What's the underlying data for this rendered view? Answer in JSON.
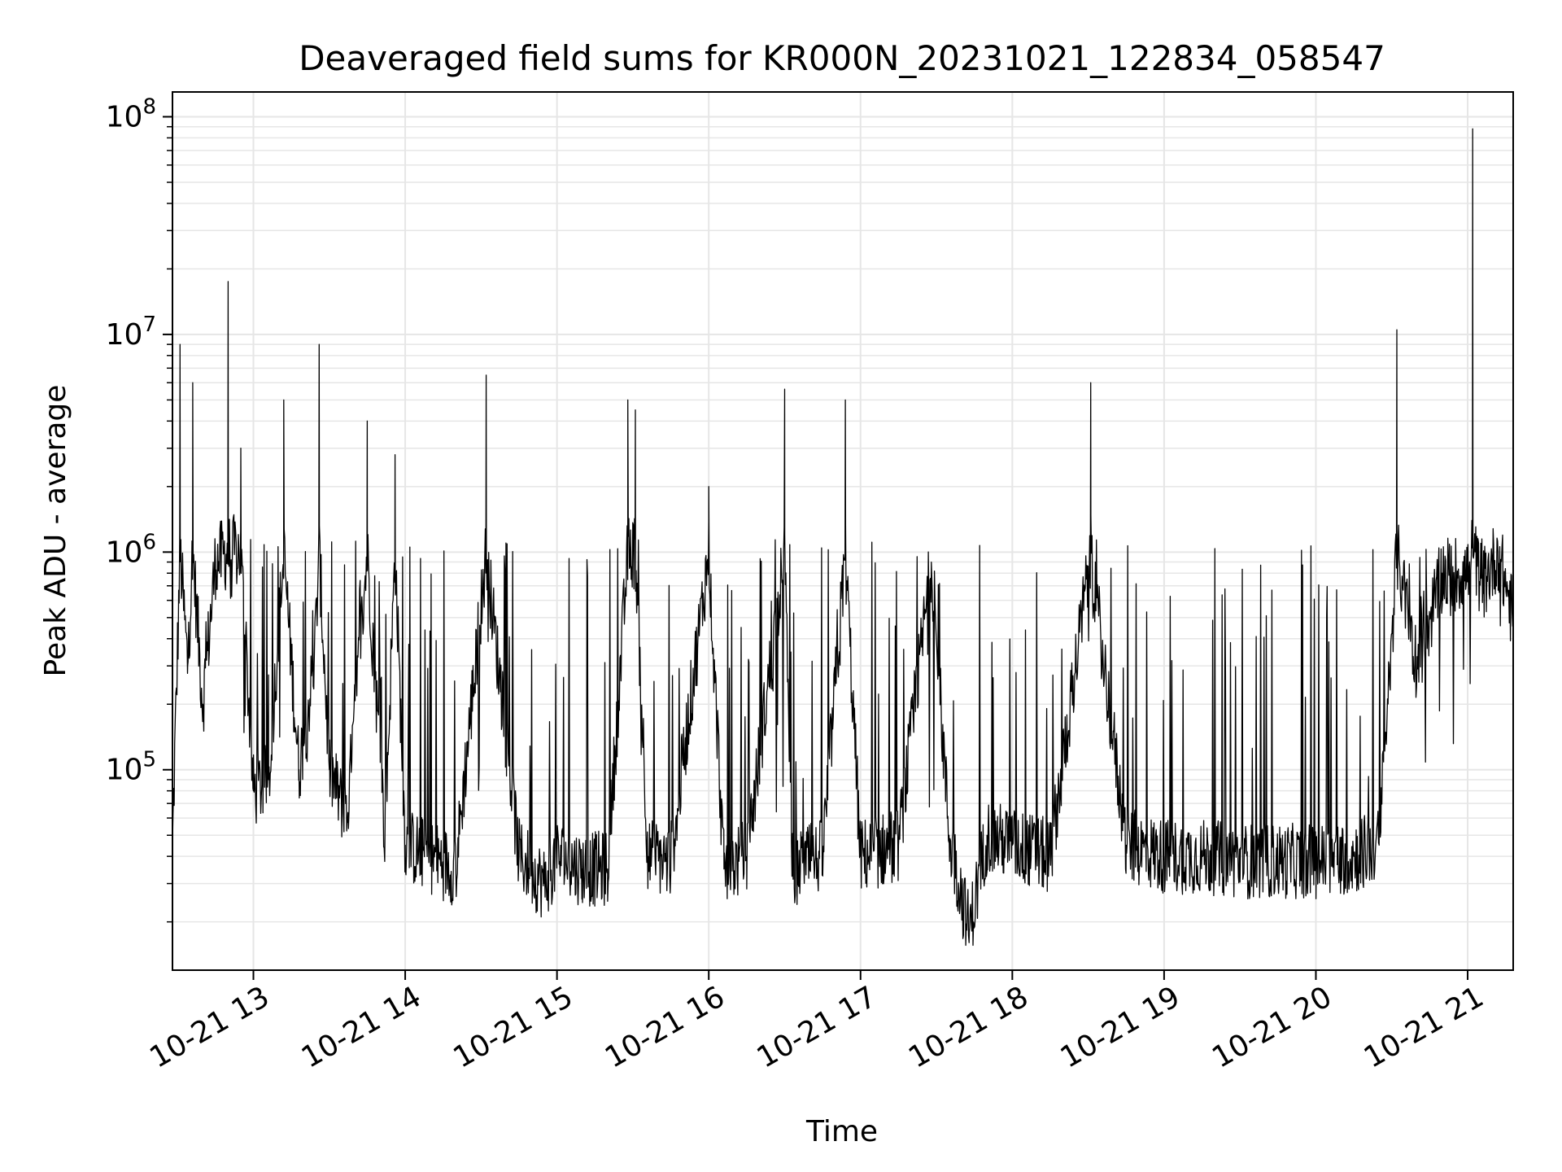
{
  "chart_data": {
    "type": "line",
    "title": "Deaveraged field sums for KR000N_20231021_122834_058547",
    "xlabel": "Time",
    "ylabel": "Peak ADU - average",
    "yscale": "log",
    "ylim": [
      12000,
      130000000
    ],
    "xlim": [
      "2023-10-21 12:28",
      "2023-10-21 21:18"
    ],
    "x_ticks": [
      {
        "at": "2023-10-21 13:00",
        "label": "10-21 13"
      },
      {
        "at": "2023-10-21 14:00",
        "label": "10-21 14"
      },
      {
        "at": "2023-10-21 15:00",
        "label": "10-21 15"
      },
      {
        "at": "2023-10-21 16:00",
        "label": "10-21 16"
      },
      {
        "at": "2023-10-21 17:00",
        "label": "10-21 17"
      },
      {
        "at": "2023-10-21 18:00",
        "label": "10-21 18"
      },
      {
        "at": "2023-10-21 19:00",
        "label": "10-21 19"
      },
      {
        "at": "2023-10-21 20:00",
        "label": "10-21 20"
      },
      {
        "at": "2023-10-21 21:00",
        "label": "10-21 21"
      }
    ],
    "y_ticks": [
      {
        "value": 100000,
        "base": "10",
        "exp": "5"
      },
      {
        "value": 1000000,
        "base": "10",
        "exp": "6"
      },
      {
        "value": 10000000,
        "base": "10",
        "exp": "7"
      },
      {
        "value": 100000000,
        "base": "10",
        "exp": "8"
      }
    ],
    "grid": true,
    "color": "#000000",
    "series": [
      {
        "x": [
          "2023-10-21 12:28",
          "2023-10-21 12:31",
          "2023-10-21 12:34",
          "2023-10-21 12:36",
          "2023-10-21 12:40",
          "2023-10-21 12:45",
          "2023-10-21 12:50",
          "2023-10-21 12:55",
          "2023-10-21 13:00",
          "2023-10-21 13:06",
          "2023-10-21 13:12",
          "2023-10-21 13:18",
          "2023-10-21 13:24",
          "2023-10-21 13:26",
          "2023-10-21 13:30",
          "2023-10-21 13:37",
          "2023-10-21 13:45",
          "2023-10-21 13:52",
          "2023-10-21 13:56",
          "2023-10-21 14:00",
          "2023-10-21 14:10",
          "2023-10-21 14:20",
          "2023-10-21 14:32",
          "2023-10-21 14:45",
          "2023-10-21 14:55",
          "2023-10-21 15:00",
          "2023-10-21 15:10",
          "2023-10-21 15:20",
          "2023-10-21 15:28",
          "2023-10-21 15:31",
          "2023-10-21 15:36",
          "2023-10-21 15:45",
          "2023-10-21 16:00",
          "2023-10-21 16:06",
          "2023-10-21 16:15",
          "2023-10-21 16:30",
          "2023-10-21 16:33",
          "2023-10-21 16:45",
          "2023-10-21 16:54",
          "2023-10-21 17:00",
          "2023-10-21 17:15",
          "2023-10-21 17:28",
          "2023-10-21 17:35",
          "2023-10-21 17:43",
          "2023-10-21 17:50",
          "2023-10-21 18:00",
          "2023-10-21 18:15",
          "2023-10-21 18:31",
          "2023-10-21 18:45",
          "2023-10-21 19:00",
          "2023-10-21 19:15",
          "2023-10-21 19:30",
          "2023-10-21 19:45",
          "2023-10-21 20:00",
          "2023-10-21 20:15",
          "2023-10-21 20:25",
          "2023-10-21 20:32",
          "2023-10-21 20:40",
          "2023-10-21 20:50",
          "2023-10-21 21:00",
          "2023-10-21 21:02",
          "2023-10-21 21:06",
          "2023-10-21 21:12",
          "2023-10-21 21:18"
        ],
        "y": [
          45000,
          9000000,
          300000,
          6000000,
          200000,
          900000,
          17500000,
          3000000,
          80000,
          90000,
          5000000,
          100000,
          300000,
          9000000,
          100000,
          60000,
          4000000,
          50000,
          2800000,
          45000,
          40000,
          35000,
          6500000,
          40000,
          30000,
          40000,
          35000,
          35000,
          5000000,
          4500000,
          40000,
          38000,
          2000000,
          35000,
          40000,
          5600000,
          35000,
          40000,
          5000000,
          40000,
          45000,
          900000,
          50000,
          18000,
          50000,
          45000,
          40000,
          6000000,
          45000,
          40000,
          40000,
          38000,
          38000,
          38000,
          40000,
          45000,
          10500000,
          300000,
          800000,
          800000,
          88000000,
          700000,
          1000000,
          500000
        ],
        "envelope": {
          "typical_low": 35000,
          "typical_high": 60000,
          "spike_level": 1000000
        }
      }
    ]
  }
}
